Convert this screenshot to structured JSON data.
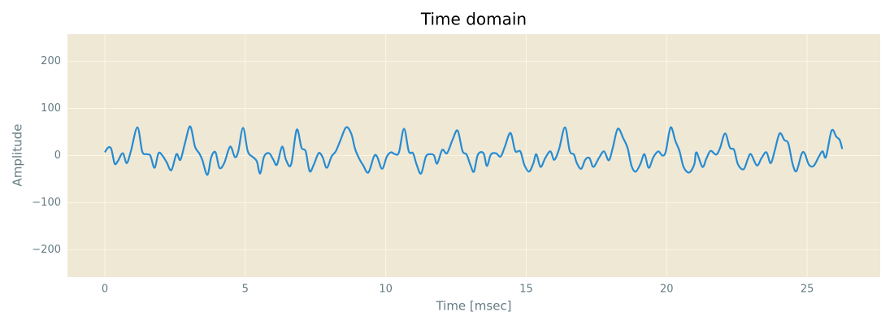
{
  "chart_data": {
    "type": "line",
    "title": "Time domain",
    "x_label": "Time [msec]",
    "y_label": "Amplitude",
    "color": "#268bd2",
    "grid": true,
    "xlim": [
      -1.33,
      27.6
    ],
    "ylim": [
      -258,
      258
    ],
    "xticks": [
      0,
      5,
      10,
      15,
      20,
      25
    ],
    "yticks": [
      {
        "value": -200,
        "label": "−200"
      },
      {
        "value": -100,
        "label": "−100"
      },
      0,
      100,
      200
    ],
    "x": [
      0,
      0.12,
      0.23,
      0.35,
      0.46,
      0.64,
      0.78,
      0.93,
      1.16,
      1.33,
      1.48,
      1.62,
      1.77,
      1.91,
      2.05,
      2.2,
      2.37,
      2.55,
      2.69,
      2.86,
      3.04,
      3.21,
      3.36,
      3.47,
      3.65,
      3.79,
      3.94,
      4.08,
      4.25,
      4.46,
      4.63,
      4.75,
      4.92,
      5.09,
      5.27,
      5.41,
      5.53,
      5.67,
      5.85,
      6.0,
      6.13,
      6.31,
      6.45,
      6.63,
      6.83,
      7.0,
      7.15,
      7.29,
      7.44,
      7.61,
      7.75,
      7.9,
      8.07,
      8.22,
      8.39,
      8.59,
      8.77,
      8.91,
      9.06,
      9.2,
      9.38,
      9.58,
      9.69,
      9.87,
      10.04,
      10.19,
      10.33,
      10.47,
      10.65,
      10.82,
      10.97,
      11.11,
      11.26,
      11.43,
      11.6,
      11.72,
      11.83,
      12.01,
      12.18,
      12.38,
      12.56,
      12.73,
      12.88,
      13.02,
      13.14,
      13.28,
      13.48,
      13.6,
      13.74,
      13.92,
      14.09,
      14.24,
      14.44,
      14.61,
      14.79,
      14.93,
      15.1,
      15.25,
      15.36,
      15.51,
      15.68,
      15.86,
      16.0,
      16.17,
      16.38,
      16.55,
      16.7,
      16.81,
      16.96,
      17.1,
      17.25,
      17.39,
      17.59,
      17.77,
      17.94,
      18.08,
      18.26,
      18.46,
      18.61,
      18.75,
      18.9,
      19.07,
      19.21,
      19.36,
      19.53,
      19.7,
      19.85,
      19.97,
      20.14,
      20.31,
      20.46,
      20.6,
      20.8,
      20.98,
      21.06,
      21.27,
      21.41,
      21.56,
      21.76,
      21.9,
      22.08,
      22.25,
      22.4,
      22.54,
      22.74,
      22.89,
      23.0,
      23.21,
      23.38,
      23.55,
      23.7,
      23.84,
      24.02,
      24.19,
      24.33,
      24.48,
      24.62,
      24.8,
      24.91,
      25.06,
      25.23,
      25.41,
      25.55,
      25.67,
      25.87,
      26.04,
      26.16,
      26.25
    ],
    "values": [
      7,
      17,
      14,
      -17,
      -12,
      5,
      -16,
      10,
      60,
      9,
      3,
      0,
      -26,
      5,
      0,
      -14,
      -31,
      3,
      -9,
      28,
      62,
      19,
      5,
      -9,
      -41,
      -3,
      7,
      -26,
      -16,
      19,
      -3,
      9,
      59,
      9,
      -3,
      -12,
      -38,
      -2,
      5,
      -9,
      -19,
      19,
      -9,
      -19,
      55,
      17,
      9,
      -33,
      -19,
      5,
      -3,
      -26,
      -2,
      9,
      33,
      60,
      47,
      14,
      -7,
      -21,
      -36,
      -2,
      -2,
      -28,
      -2,
      7,
      3,
      7,
      57,
      9,
      5,
      -21,
      -38,
      -2,
      3,
      0,
      -17,
      12,
      5,
      34,
      53,
      10,
      2,
      -21,
      -34,
      2,
      5,
      -22,
      2,
      5,
      -2,
      19,
      48,
      10,
      9,
      -19,
      -34,
      -17,
      3,
      -24,
      -5,
      9,
      -9,
      14,
      60,
      10,
      2,
      -17,
      -28,
      -9,
      -5,
      -24,
      -5,
      9,
      -10,
      16,
      57,
      36,
      16,
      -22,
      -34,
      -17,
      3,
      -26,
      -3,
      9,
      0,
      9,
      60,
      31,
      9,
      -24,
      -36,
      -19,
      7,
      -24,
      -7,
      10,
      2,
      16,
      47,
      17,
      12,
      -19,
      -29,
      -7,
      3,
      -21,
      -5,
      7,
      -16,
      9,
      47,
      33,
      26,
      -17,
      -33,
      3,
      5,
      -19,
      -22,
      -3,
      9,
      -3,
      53,
      40,
      33,
      14
    ]
  }
}
